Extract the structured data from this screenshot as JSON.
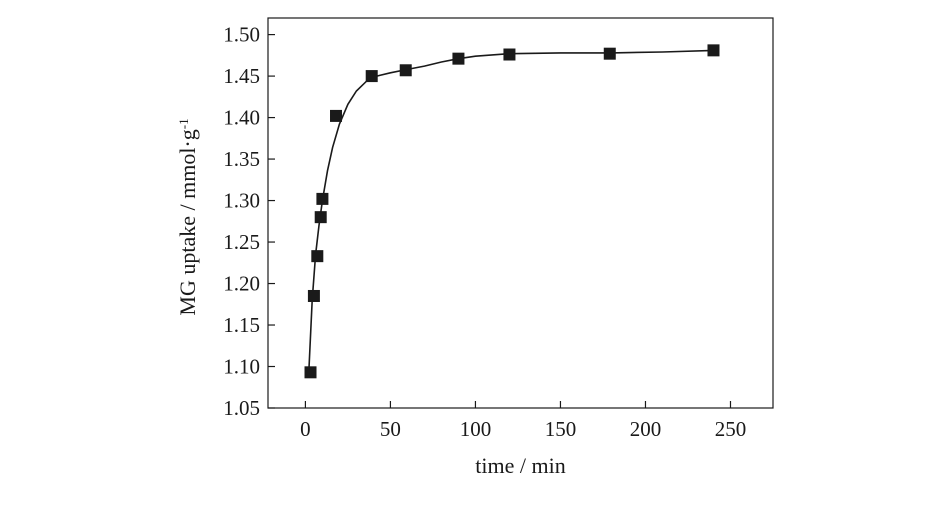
{
  "chart_data": {
    "type": "scatter",
    "title": "",
    "xlabel": "time / min",
    "ylabel": "MG uptake / mmol·g",
    "ylabel_superscript": "-1",
    "xlim": [
      -22,
      275
    ],
    "ylim": [
      1.05,
      1.52
    ],
    "x_ticks": [
      "0",
      "50",
      "100",
      "150",
      "200",
      "250"
    ],
    "y_ticks": [
      "1.05",
      "1.10",
      "1.15",
      "1.20",
      "1.25",
      "1.30",
      "1.35",
      "1.40",
      "1.45",
      "1.50"
    ],
    "grid": false,
    "marker": "square",
    "colors": {
      "marker": "#1a1a1a",
      "line": "#1a1a1a",
      "axis": "#1a1a1a"
    },
    "series": [
      {
        "values": [
          {
            "x": 3,
            "y": 1.093
          },
          {
            "x": 5,
            "y": 1.185
          },
          {
            "x": 7,
            "y": 1.233
          },
          {
            "x": 9,
            "y": 1.28
          },
          {
            "x": 10,
            "y": 1.302
          },
          {
            "x": 18,
            "y": 1.402
          },
          {
            "x": 39,
            "y": 1.45
          },
          {
            "x": 59,
            "y": 1.457
          },
          {
            "x": 90,
            "y": 1.471
          },
          {
            "x": 120,
            "y": 1.476
          },
          {
            "x": 179,
            "y": 1.477
          },
          {
            "x": 240,
            "y": 1.481
          }
        ]
      }
    ],
    "fit_line": [
      {
        "x": 2,
        "y": 1.093
      },
      {
        "x": 4,
        "y": 1.18
      },
      {
        "x": 6,
        "y": 1.235
      },
      {
        "x": 8,
        "y": 1.27
      },
      {
        "x": 10,
        "y": 1.3
      },
      {
        "x": 13,
        "y": 1.336
      },
      {
        "x": 16,
        "y": 1.364
      },
      {
        "x": 20,
        "y": 1.392
      },
      {
        "x": 25,
        "y": 1.416
      },
      {
        "x": 30,
        "y": 1.432
      },
      {
        "x": 36,
        "y": 1.444
      },
      {
        "x": 42,
        "y": 1.45
      },
      {
        "x": 50,
        "y": 1.454
      },
      {
        "x": 60,
        "y": 1.458
      },
      {
        "x": 70,
        "y": 1.462
      },
      {
        "x": 80,
        "y": 1.467
      },
      {
        "x": 90,
        "y": 1.471
      },
      {
        "x": 100,
        "y": 1.474
      },
      {
        "x": 120,
        "y": 1.477
      },
      {
        "x": 150,
        "y": 1.478
      },
      {
        "x": 180,
        "y": 1.478
      },
      {
        "x": 210,
        "y": 1.479
      },
      {
        "x": 240,
        "y": 1.481
      }
    ]
  }
}
